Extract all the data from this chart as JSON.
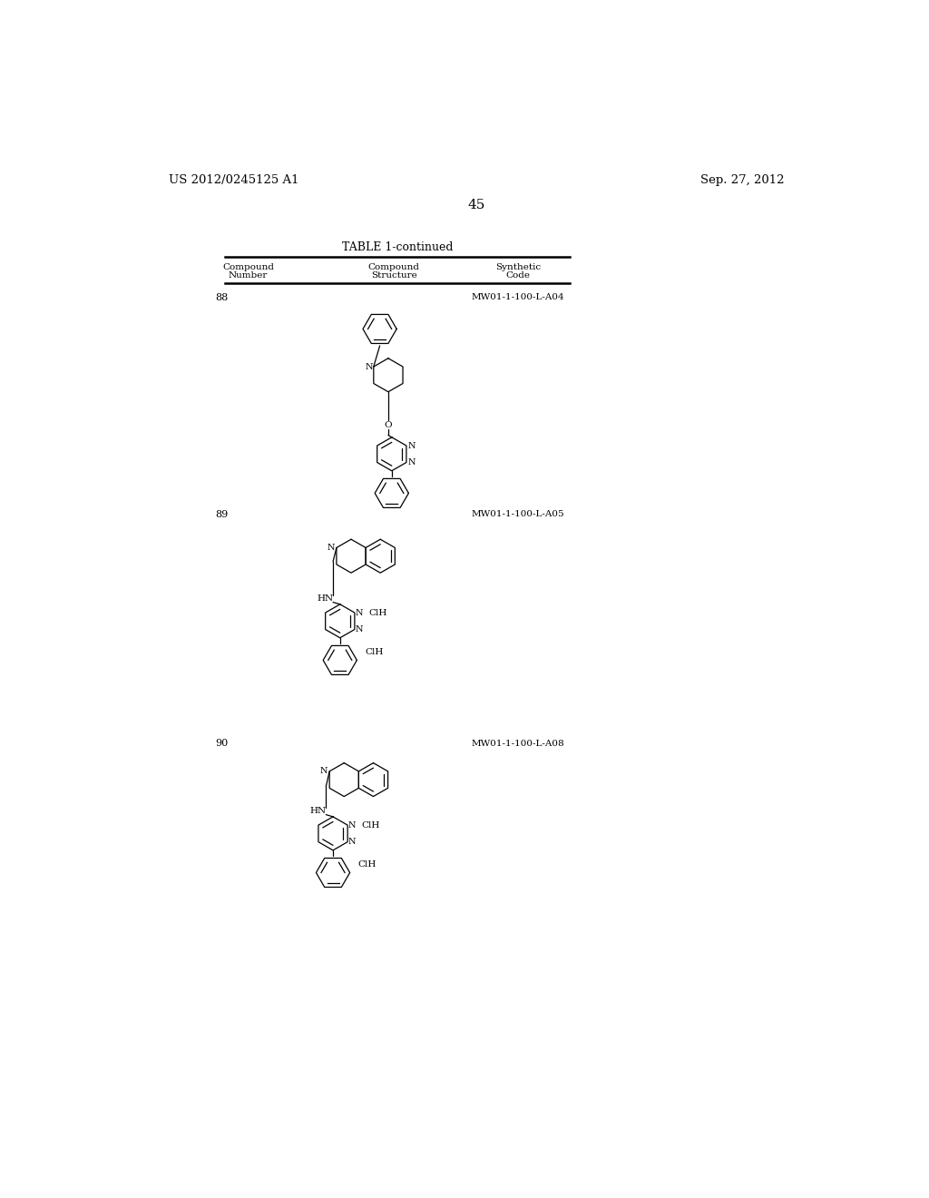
{
  "background_color": "#ffffff",
  "page_number": "45",
  "left_header": "US 2012/0245125 A1",
  "right_header": "Sep. 27, 2012",
  "table_title": "TABLE 1-continued",
  "text_color": "#000000",
  "compounds": [
    {
      "number": "88",
      "code": "MW01-1-100-L-A04"
    },
    {
      "number": "89",
      "code": "MW01-1-100-L-A05"
    },
    {
      "number": "90",
      "code": "MW01-1-100-L-A08"
    }
  ]
}
